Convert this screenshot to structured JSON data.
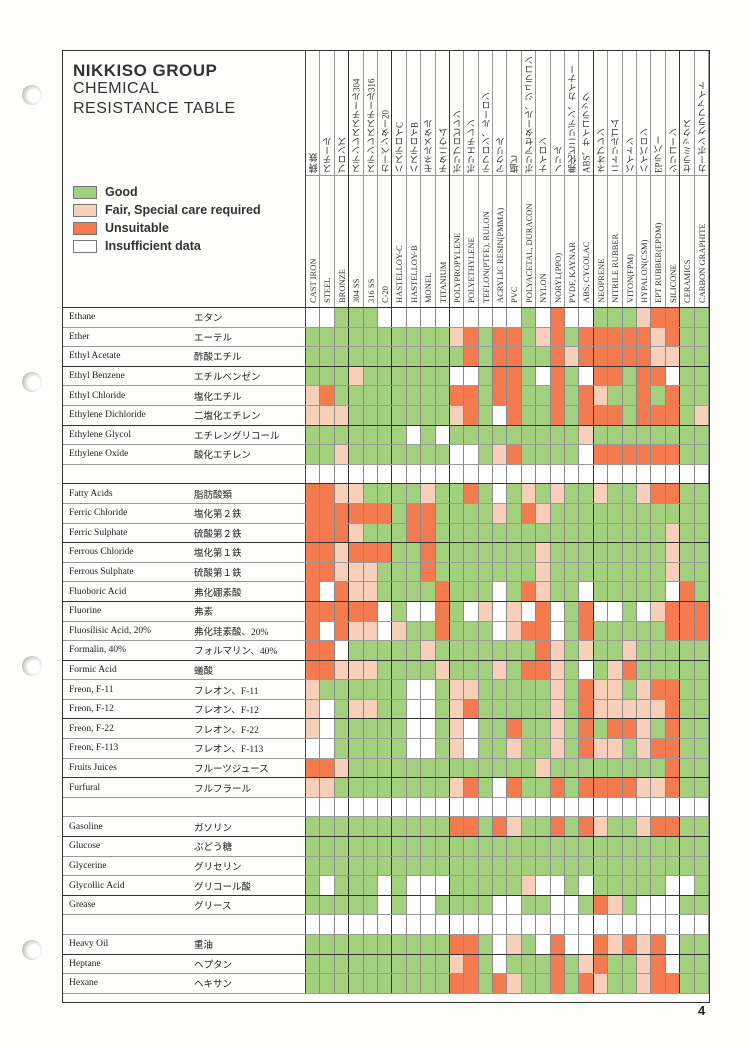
{
  "header": {
    "title_line1": "NIKKISO GROUP",
    "title_line2": "CHEMICAL",
    "title_line3": "RESISTANCE TABLE"
  },
  "legend": [
    {
      "key": "G",
      "label": "Good",
      "color": "#a3d07c"
    },
    {
      "key": "F",
      "label": "Fair, Special care required",
      "color": "#f8cfb8"
    },
    {
      "key": "U",
      "label": "Unsuitable",
      "color": "#f47b50"
    },
    {
      "key": "W",
      "label": "Insufficient data",
      "color": "#ffffff"
    }
  ],
  "columns": [
    {
      "en": "CAST IRON",
      "ja": "鋳 鉄"
    },
    {
      "en": "STEEL",
      "ja": "スチール"
    },
    {
      "en": "BRONZE",
      "ja": "ブロンズ"
    },
    {
      "en": "304 SS",
      "ja": "ステンレススチール304"
    },
    {
      "en": "316 SS",
      "ja": "ステンレススチール316"
    },
    {
      "en": "C-20",
      "ja": "カーペンター20"
    },
    {
      "en": "HASTELLOY-C",
      "ja": "ハステロイC"
    },
    {
      "en": "HASTELLOY-B",
      "ja": "ハステロイB"
    },
    {
      "en": "MONEL",
      "ja": "モネルメタル"
    },
    {
      "en": "TITANIUM",
      "ja": "チタニウム"
    },
    {
      "en": "POLYPROPYLENE",
      "ja": "ポリプロピレン"
    },
    {
      "en": "POLYETHYLENE",
      "ja": "ポリエチレン"
    },
    {
      "en": "TEFLON(PTFE), RULON",
      "ja": "テフロン、ルーロン"
    },
    {
      "en": "ACRYLIC RESIN(PMMA)",
      "ja": "アクリル"
    },
    {
      "en": "PVC",
      "ja": "塩ビ"
    },
    {
      "en": "POLYACETAL, DURACON",
      "ja": "ポリアセタール、ジュラコン"
    },
    {
      "en": "NYLON",
      "ja": "ナイロン"
    },
    {
      "en": "NORYL(PPO)",
      "ja": "ノリル"
    },
    {
      "en": "PVDF, KAYNAR",
      "ja": "弗化ビニリデン、カイナー"
    },
    {
      "en": "ABS, CYCOLAC",
      "ja": "ABS、サイコラック"
    },
    {
      "en": "NEOPRENE",
      "ja": "ネオプレン"
    },
    {
      "en": "NITRILE RUBBER",
      "ja": "ニトリルゴム"
    },
    {
      "en": "VITON(FPM)",
      "ja": "バイトン"
    },
    {
      "en": "HYPALON(CSM)",
      "ja": "ハイパロン"
    },
    {
      "en": "EPT RUBBER(EPDM)",
      "ja": "EPラバー"
    },
    {
      "en": "SILICONE",
      "ja": "シリコーン"
    },
    {
      "en": "CERAMICS",
      "ja": "セラミックス"
    },
    {
      "en": "CARBON GRAPHITE",
      "ja": "カーボン グラファイト"
    }
  ],
  "rows": [
    {
      "en": "Ethane",
      "ja": "エタン",
      "cells": "WWGGGWWWWWWWWWWGWUWWGGGFUUGG"
    },
    {
      "en": "Ether",
      "ja": "エーテル",
      "cells": "GGGGGGGGGGFUGUUGFUGUUUUUFUGG"
    },
    {
      "en": "Ethyl Acetate",
      "ja": "酢酸エチル",
      "cells": "GGGGGGGGGGGUGUUGGUFUUUUUFFGG"
    },
    {
      "en": "Ethyl Benzene",
      "ja": "エチルベンゼン",
      "cells": "GGGFGGGGGGWWGUUGWUGWUUGUUWGG"
    },
    {
      "en": "Ethyl Chloride",
      "ja": "塩化エチル",
      "cells": "FUGGGGGGGGUUGUUGGUGUFGGUGUGG"
    },
    {
      "en": "Ethylene Dichloride",
      "ja": "二塩化エチレン",
      "cells": "FFFGGGGGGGFUGWUGGUGUUUGUUUGF"
    },
    {
      "en": "Ethylene Glycol",
      "ja": "エチレングリコール",
      "cells": "GGGGGGGWGWGGGGGGGGGFGGGGGGGG"
    },
    {
      "en": "Ethylene Oxide",
      "ja": "酸化エチレン",
      "cells": "GGFGGGGGGGWWGFUGGGGWUUUUUUGG"
    },
    {
      "en": "",
      "ja": "",
      "cells": "WWWWWWWWWWWWWWWWWWWWWWWWWWWW"
    },
    {
      "en": "Fatty Acids",
      "ja": "脂肪酸類",
      "cells": "UUFFGGGGFGGUGWGFGFGGFGGFUUGG"
    },
    {
      "en": "Ferric Chloride",
      "ja": "塩化第２鉄",
      "cells": "UUUUUUGUUGGGGFGUFGGGGGGGGGGG"
    },
    {
      "en": "Ferric Sulphate",
      "ja": "硫酸第２鉄",
      "cells": "UUUFGGGUUGGGGGGGGGGGGGGGGFGG"
    },
    {
      "en": "Ferrous Chloride",
      "ja": "塩化第１鉄",
      "cells": "UUFUUUGGUGGGGGGGFGGGGGGGGFGG"
    },
    {
      "en": "Ferrous Sulphate",
      "ja": "硫酸第１鉄",
      "cells": "UUFFFGGGUGGGGGGGFGGGGGGGGFGG"
    },
    {
      "en": "Fluoboric Acid",
      "ja": "弗化硼素酸",
      "cells": "UWUFFGGGGUGGGWGUFGGWGGGGGWUG"
    },
    {
      "en": "Fluorine",
      "ja": "弗素",
      "cells": "UUUUUWGWWUGWFWFWUWGUWWGWFUUU"
    },
    {
      "en": "Fluosilisic Acid, 20%",
      "ja": "弗化珪素酸、20%",
      "cells": "UWUFFWFGGUGGGWFUUWGUGGGGGUUU"
    },
    {
      "en": "Formalin, 40%",
      "ja": "フォルマリン、40%",
      "cells": "UUWGGGGGFGGGGGGGUFGFGGFGGGGG"
    },
    {
      "en": "Formic Acid",
      "ja": "蟻酸",
      "cells": "UUFFFGGGGFGGGFGUUFGWGFUGGGGG"
    },
    {
      "en": "Freon, F-11",
      "ja": "フレオン、F-11",
      "cells": "FGGGGGGWWGFFGGGGGFGUFFGFUUGG"
    },
    {
      "en": "Freon, F-12",
      "ja": "フレオン、F-12",
      "cells": "FWGFFGGWWGFUGGGGGFGUFFFFFUGG"
    },
    {
      "en": "Freon, F-22",
      "ja": "フレオン、F-22",
      "cells": "FWGGGGGWWGFWGGUGGFGUGUUFGUGG"
    },
    {
      "en": "Freon, F-113",
      "ja": "フレオン、F-113",
      "cells": "WWGGGGGWWGFWGGFGGFGUFFGFUUGG"
    },
    {
      "en": "Fruits Juices",
      "ja": "フルーツジュース",
      "cells": "UUFGGGGGGGGGGGGGFGGGGGGGGUGG"
    },
    {
      "en": "Furfural",
      "ja": "フルフラール",
      "cells": "FFGGGGGGGGFUGWUGGUGUUUUFFUGG"
    },
    {
      "en": "",
      "ja": "",
      "cells": "WWWWWWWWWWWWWWWWWWWWWWWWWWWW"
    },
    {
      "en": "Gasoline",
      "ja": "ガソリン",
      "cells": "GGGGGGGGGGUUGUFGGUGUFGGFUUGG"
    },
    {
      "en": "Glucose",
      "ja": "ぶどう糖",
      "cells": "GGGGGGGGGGGGGGGGGGGGGGGGGGGG"
    },
    {
      "en": "Glycerine",
      "ja": "グリセリン",
      "cells": "GGGGGGGGGGGGGGGGGGGGGGGGGGGG"
    },
    {
      "en": "Glycollic Acid",
      "ja": "グリコール酸",
      "cells": "GWGGGWGWWWGGGGGFWWGWGGGGGWWG"
    },
    {
      "en": "Grease",
      "ja": "グリース",
      "cells": "GGGGGWGWWGGGGWWGGWWGUFGWWWGG"
    },
    {
      "en": "",
      "ja": "",
      "cells": "WWWWWWWWWWWWWWWWWWWWWWWWWWWW"
    },
    {
      "en": "Heavy Oil",
      "ja": "重油",
      "cells": "GGGGGGGGGGUUGWFGWUWWUFUFUWGG"
    },
    {
      "en": "Heptane",
      "ja": "ヘプタン",
      "cells": "GGGGGGGGGGFUGWGGGUGFUGGFUWGG"
    },
    {
      "en": "Hexane",
      "ja": "ヘキサン",
      "cells": "GGGGGGGGGGUUGUFGGUGUFGGFUUGG"
    }
  ],
  "page_number": "4"
}
